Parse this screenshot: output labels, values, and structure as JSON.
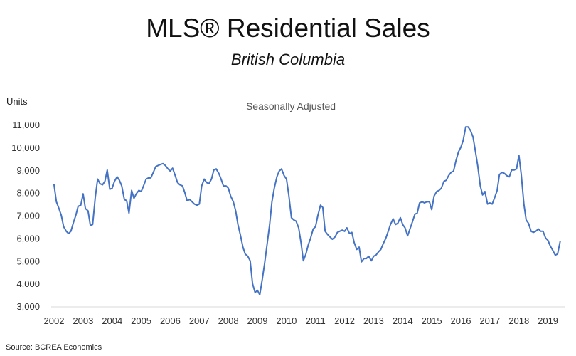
{
  "chart_data": {
    "type": "line",
    "title": "MLS® Residential Sales",
    "subtitle": "British Columbia",
    "annotation": "Seasonally Adjusted",
    "ylabel": "Units",
    "xlabel": "",
    "ylim": [
      3000,
      11000
    ],
    "xlim": [
      2002,
      2019.5
    ],
    "y_ticks": [
      "3,000",
      "4,000",
      "5,000",
      "6,000",
      "7,000",
      "8,000",
      "9,000",
      "10,000",
      "11,000"
    ],
    "y_tick_values": [
      3000,
      4000,
      5000,
      6000,
      7000,
      8000,
      9000,
      10000,
      11000
    ],
    "x_ticks": [
      "2002",
      "2003",
      "2004",
      "2005",
      "2006",
      "2007",
      "2008",
      "2009",
      "2010",
      "2011",
      "2012",
      "2013",
      "2014",
      "2015",
      "2016",
      "2017",
      "2018",
      "2019"
    ],
    "x_tick_values": [
      2002,
      2003,
      2004,
      2005,
      2006,
      2007,
      2008,
      2009,
      2010,
      2011,
      2012,
      2013,
      2014,
      2015,
      2016,
      2017,
      2018,
      2019
    ],
    "grid": false,
    "legend": "none",
    "series": [
      {
        "color": "#4472C4",
        "x": [
          2002.0,
          2002.08,
          2002.17,
          2002.25,
          2002.33,
          2002.42,
          2002.5,
          2002.58,
          2002.67,
          2002.75,
          2002.83,
          2002.92,
          2003.0,
          2003.08,
          2003.17,
          2003.25,
          2003.33,
          2003.42,
          2003.5,
          2003.58,
          2003.67,
          2003.75,
          2003.83,
          2003.92,
          2004.0,
          2004.08,
          2004.17,
          2004.25,
          2004.33,
          2004.42,
          2004.5,
          2004.58,
          2004.67,
          2004.75,
          2004.83,
          2004.92,
          2005.0,
          2005.08,
          2005.17,
          2005.25,
          2005.33,
          2005.42,
          2005.5,
          2005.58,
          2005.67,
          2005.75,
          2005.83,
          2005.92,
          2006.0,
          2006.08,
          2006.17,
          2006.25,
          2006.33,
          2006.42,
          2006.5,
          2006.58,
          2006.67,
          2006.75,
          2006.83,
          2006.92,
          2007.0,
          2007.08,
          2007.17,
          2007.25,
          2007.33,
          2007.42,
          2007.5,
          2007.58,
          2007.67,
          2007.75,
          2007.83,
          2007.92,
          2008.0,
          2008.08,
          2008.17,
          2008.25,
          2008.33,
          2008.42,
          2008.5,
          2008.58,
          2008.67,
          2008.75,
          2008.83,
          2008.92,
          2009.0,
          2009.08,
          2009.17,
          2009.25,
          2009.33,
          2009.42,
          2009.5,
          2009.58,
          2009.67,
          2009.75,
          2009.83,
          2009.92,
          2010.0,
          2010.08,
          2010.17,
          2010.25,
          2010.33,
          2010.42,
          2010.5,
          2010.58,
          2010.67,
          2010.75,
          2010.83,
          2010.92,
          2011.0,
          2011.08,
          2011.17,
          2011.25,
          2011.33,
          2011.42,
          2011.5,
          2011.58,
          2011.67,
          2011.75,
          2011.83,
          2011.92,
          2012.0,
          2012.08,
          2012.17,
          2012.25,
          2012.33,
          2012.42,
          2012.5,
          2012.58,
          2012.67,
          2012.75,
          2012.83,
          2012.92,
          2013.0,
          2013.08,
          2013.17,
          2013.25,
          2013.33,
          2013.42,
          2013.5,
          2013.58,
          2013.67,
          2013.75,
          2013.83,
          2013.92,
          2014.0,
          2014.08,
          2014.17,
          2014.25,
          2014.33,
          2014.42,
          2014.5,
          2014.58,
          2014.67,
          2014.75,
          2014.83,
          2014.92,
          2015.0,
          2015.08,
          2015.17,
          2015.25,
          2015.33,
          2015.42,
          2015.5,
          2015.58,
          2015.67,
          2015.75,
          2015.83,
          2015.92,
          2016.0,
          2016.08,
          2016.17,
          2016.25,
          2016.33,
          2016.42,
          2016.5,
          2016.58,
          2016.67,
          2016.75,
          2016.83,
          2016.92,
          2017.0,
          2017.08,
          2017.17,
          2017.25,
          2017.33,
          2017.42,
          2017.5,
          2017.58,
          2017.67,
          2017.75,
          2017.83,
          2017.92,
          2018.0,
          2018.08,
          2018.17,
          2018.25,
          2018.33,
          2018.42,
          2018.5,
          2018.58,
          2018.67,
          2018.75,
          2018.83,
          2018.92,
          2019.0,
          2019.08,
          2019.17,
          2019.25,
          2019.33,
          2019.42
        ],
        "values": [
          8350,
          7600,
          7300,
          7000,
          6500,
          6300,
          6200,
          6300,
          6700,
          7000,
          7400,
          7450,
          7950,
          7300,
          7200,
          6550,
          6600,
          7800,
          8600,
          8400,
          8350,
          8500,
          9000,
          8150,
          8200,
          8500,
          8700,
          8550,
          8300,
          7700,
          7650,
          7100,
          8100,
          7750,
          7950,
          8100,
          8050,
          8300,
          8600,
          8650,
          8650,
          8900,
          9150,
          9200,
          9250,
          9280,
          9200,
          9050,
          8950,
          9080,
          8750,
          8450,
          8350,
          8300,
          8000,
          7650,
          7700,
          7600,
          7500,
          7450,
          7500,
          8300,
          8600,
          8450,
          8400,
          8600,
          9000,
          9050,
          8850,
          8600,
          8300,
          8300,
          8200,
          7850,
          7600,
          7200,
          6600,
          6100,
          5600,
          5300,
          5200,
          5000,
          4000,
          3600,
          3700,
          3500,
          4200,
          4900,
          5700,
          6600,
          7600,
          8200,
          8700,
          8950,
          9050,
          8750,
          8600,
          7900,
          6900,
          6800,
          6750,
          6450,
          5800,
          5000,
          5300,
          5700,
          6000,
          6400,
          6500,
          7000,
          7450,
          7350,
          6300,
          6150,
          6050,
          5950,
          6050,
          6250,
          6300,
          6350,
          6300,
          6450,
          6200,
          6250,
          5800,
          5500,
          5600,
          4950,
          5100,
          5100,
          5200,
          5000,
          5200,
          5250,
          5400,
          5500,
          5750,
          6000,
          6300,
          6600,
          6850,
          6600,
          6650,
          6900,
          6600,
          6450,
          6100,
          6400,
          6700,
          7050,
          7100,
          7550,
          7600,
          7550,
          7600,
          7600,
          7250,
          7850,
          8050,
          8100,
          8200,
          8500,
          8550,
          8750,
          8900,
          8950,
          9400,
          9800,
          10000,
          10300,
          10900,
          10900,
          10750,
          10450,
          9850,
          9200,
          8300,
          7900,
          8050,
          7500,
          7550,
          7500,
          7800,
          8100,
          8800,
          8900,
          8850,
          8750,
          8700,
          9000,
          9000,
          9050,
          9650,
          8800,
          7500,
          6800,
          6650,
          6300,
          6250,
          6300,
          6400,
          6300,
          6300,
          6000,
          5900,
          5650,
          5450,
          5250,
          5300,
          5850
        ]
      }
    ]
  },
  "source": "Source: BCREA Economics"
}
